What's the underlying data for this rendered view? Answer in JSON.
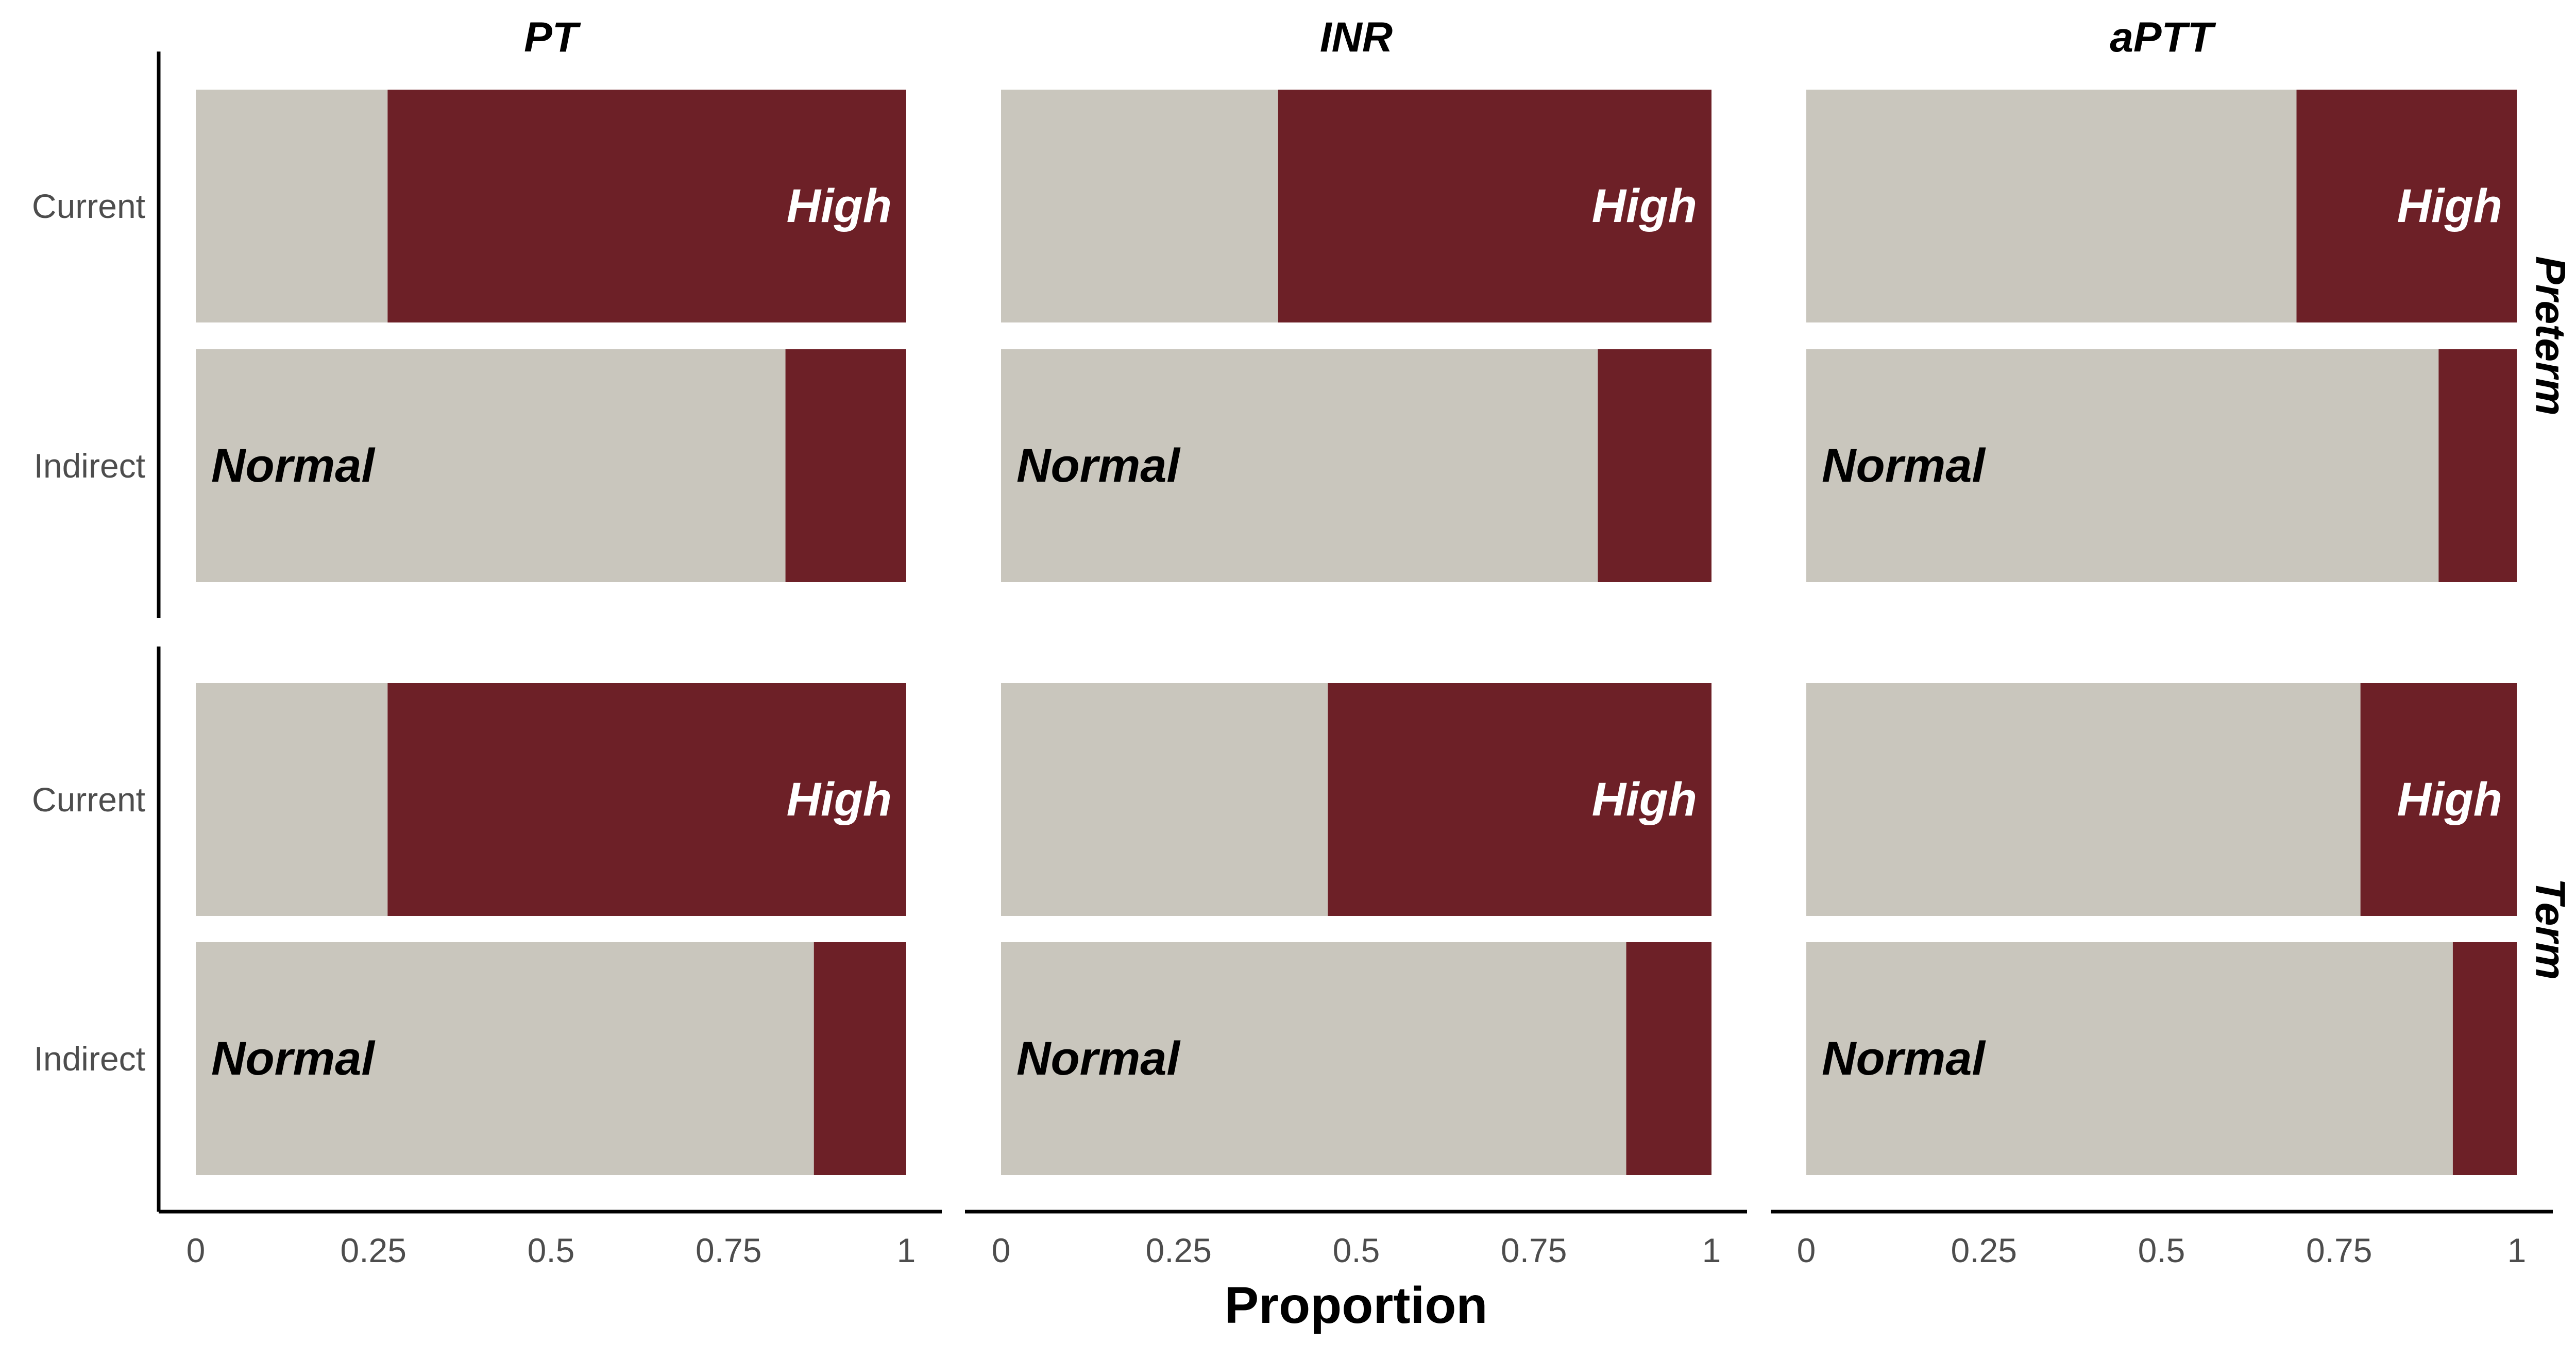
{
  "chart_data": {
    "type": "bar",
    "stacked": true,
    "orientation": "horizontal",
    "xlabel": "Proportion",
    "xlim": [
      0,
      1
    ],
    "x_ticks": [
      {
        "value": 0,
        "label": "0"
      },
      {
        "value": 0.25,
        "label": "0.25"
      },
      {
        "value": 0.5,
        "label": "0.5"
      },
      {
        "value": 0.75,
        "label": "0.75"
      },
      {
        "value": 1,
        "label": "1"
      }
    ],
    "categories": [
      "Current",
      "Indirect"
    ],
    "columns": [
      "PT",
      "INR",
      "aPTT"
    ],
    "rows": [
      "Preterm",
      "Term"
    ],
    "segment_labels": {
      "normal": "Normal",
      "high": "High"
    },
    "series_colors": {
      "Normal": "#c9c6bd",
      "High": "#6d2027"
    },
    "grid": false,
    "legend": "none",
    "panels": [
      {
        "column": "PT",
        "row": "Preterm",
        "normal": [
          0.27,
          0.83
        ],
        "high": [
          0.73,
          0.17
        ]
      },
      {
        "column": "INR",
        "row": "Preterm",
        "normal": [
          0.39,
          0.84
        ],
        "high": [
          0.61,
          0.16
        ]
      },
      {
        "column": "aPTT",
        "row": "Preterm",
        "normal": [
          0.69,
          0.89
        ],
        "high": [
          0.31,
          0.11
        ]
      },
      {
        "column": "PT",
        "row": "Term",
        "normal": [
          0.27,
          0.87
        ],
        "high": [
          0.73,
          0.13
        ]
      },
      {
        "column": "INR",
        "row": "Term",
        "normal": [
          0.46,
          0.88
        ],
        "high": [
          0.54,
          0.12
        ]
      },
      {
        "column": "aPTT",
        "row": "Term",
        "normal": [
          0.78,
          0.91
        ],
        "high": [
          0.22,
          0.09
        ]
      }
    ],
    "label_positions": {
      "Current": "High",
      "Indirect": "Normal"
    }
  }
}
